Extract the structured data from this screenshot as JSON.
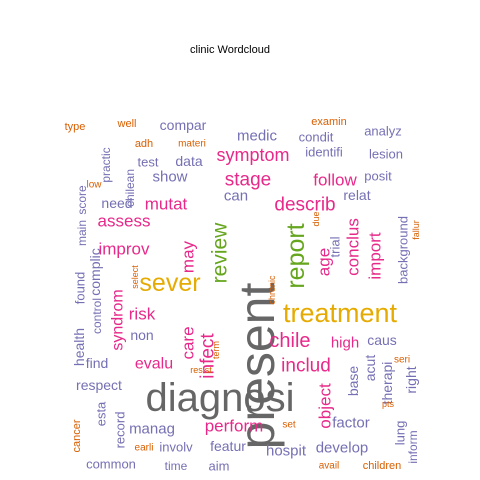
{
  "chart_data": {
    "type": "wordcloud",
    "title": "clinic  Wordcloud",
    "colors": {
      "gray": "#666666",
      "gold": "#E6AB02",
      "magenta": "#E7298A",
      "purple": "#7570B3",
      "green": "#66A61E",
      "orange": "#D95F02",
      "olive": "#A6761D"
    },
    "words": [
      {
        "text": "present",
        "color": "gray"
      },
      {
        "text": "diagnosi",
        "color": "gray"
      },
      {
        "text": "treatment",
        "color": "gold"
      },
      {
        "text": "sever",
        "color": "gold"
      },
      {
        "text": "report",
        "color": "green"
      },
      {
        "text": "review",
        "color": "green"
      },
      {
        "text": "chile",
        "color": "magenta"
      },
      {
        "text": "infect",
        "color": "magenta"
      },
      {
        "text": "includ",
        "color": "magenta"
      },
      {
        "text": "describ",
        "color": "magenta"
      },
      {
        "text": "care",
        "color": "magenta"
      },
      {
        "text": "may",
        "color": "magenta"
      },
      {
        "text": "stage",
        "color": "magenta"
      },
      {
        "text": "symptom",
        "color": "magenta"
      },
      {
        "text": "follow",
        "color": "magenta"
      },
      {
        "text": "improv",
        "color": "magenta"
      },
      {
        "text": "assess",
        "color": "magenta"
      },
      {
        "text": "mutat",
        "color": "magenta"
      },
      {
        "text": "risk",
        "color": "magenta"
      },
      {
        "text": "evalu",
        "color": "magenta"
      },
      {
        "text": "perform",
        "color": "magenta"
      },
      {
        "text": "high",
        "color": "magenta"
      },
      {
        "text": "age",
        "color": "magenta"
      },
      {
        "text": "conclus",
        "color": "magenta"
      },
      {
        "text": "import",
        "color": "magenta"
      },
      {
        "text": "syndrom",
        "color": "magenta"
      },
      {
        "text": "object",
        "color": "magenta"
      },
      {
        "text": "medic",
        "color": "purple"
      },
      {
        "text": "compar",
        "color": "purple"
      },
      {
        "text": "data",
        "color": "purple"
      },
      {
        "text": "show",
        "color": "purple"
      },
      {
        "text": "can",
        "color": "purple"
      },
      {
        "text": "need",
        "color": "purple"
      },
      {
        "text": "test",
        "color": "purple"
      },
      {
        "text": "condit",
        "color": "purple"
      },
      {
        "text": "identifi",
        "color": "purple"
      },
      {
        "text": "lesion",
        "color": "purple"
      },
      {
        "text": "analyz",
        "color": "purple"
      },
      {
        "text": "posit",
        "color": "purple"
      },
      {
        "text": "relat",
        "color": "purple"
      },
      {
        "text": "trial",
        "color": "purple"
      },
      {
        "text": "background",
        "color": "purple"
      },
      {
        "text": "caus",
        "color": "purple"
      },
      {
        "text": "acut",
        "color": "purple"
      },
      {
        "text": "base",
        "color": "purple"
      },
      {
        "text": "therapi",
        "color": "purple"
      },
      {
        "text": "right",
        "color": "purple"
      },
      {
        "text": "factor",
        "color": "purple"
      },
      {
        "text": "develop",
        "color": "purple"
      },
      {
        "text": "hospit",
        "color": "purple"
      },
      {
        "text": "featur",
        "color": "purple"
      },
      {
        "text": "involv",
        "color": "purple"
      },
      {
        "text": "manag",
        "color": "purple"
      },
      {
        "text": "respect",
        "color": "purple"
      },
      {
        "text": "find",
        "color": "purple"
      },
      {
        "text": "non",
        "color": "purple"
      },
      {
        "text": "complic",
        "color": "purple"
      },
      {
        "text": "found",
        "color": "purple"
      },
      {
        "text": "health",
        "color": "purple"
      },
      {
        "text": "main",
        "color": "purple"
      },
      {
        "text": "score",
        "color": "purple"
      },
      {
        "text": "practic",
        "color": "purple"
      },
      {
        "text": "chilean",
        "color": "purple"
      },
      {
        "text": "common",
        "color": "purple"
      },
      {
        "text": "aim",
        "color": "purple"
      },
      {
        "text": "record",
        "color": "purple"
      },
      {
        "text": "esta",
        "color": "purple"
      },
      {
        "text": "lung",
        "color": "purple"
      },
      {
        "text": "inform",
        "color": "purple"
      },
      {
        "text": "time",
        "color": "purple"
      },
      {
        "text": "control",
        "color": "purple"
      },
      {
        "text": "type",
        "color": "orange"
      },
      {
        "text": "well",
        "color": "orange"
      },
      {
        "text": "adh",
        "color": "orange"
      },
      {
        "text": "materi",
        "color": "orange"
      },
      {
        "text": "examin",
        "color": "orange"
      },
      {
        "text": "low",
        "color": "orange"
      },
      {
        "text": "select",
        "color": "orange"
      },
      {
        "text": "chronic",
        "color": "orange"
      },
      {
        "text": "due",
        "color": "orange"
      },
      {
        "text": "term",
        "color": "orange"
      },
      {
        "text": "resist",
        "color": "orange"
      },
      {
        "text": "seri",
        "color": "orange"
      },
      {
        "text": "set",
        "color": "orange"
      },
      {
        "text": "pts",
        "color": "orange"
      },
      {
        "text": "earli",
        "color": "orange"
      },
      {
        "text": "cancer",
        "color": "orange"
      },
      {
        "text": "avail",
        "color": "orange"
      },
      {
        "text": "children",
        "color": "orange"
      },
      {
        "text": "fallur",
        "color": "orange"
      }
    ]
  }
}
